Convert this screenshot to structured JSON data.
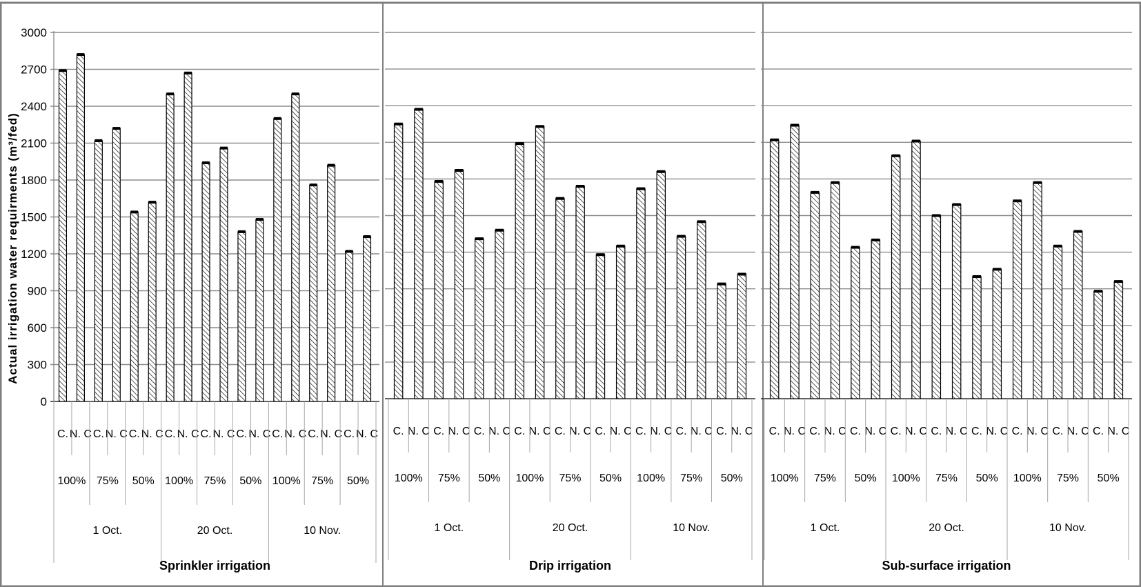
{
  "chart_data": {
    "type": "bar",
    "ylabel": "Actual irrigation water requirments (m³/fed)",
    "ylim": [
      0,
      3000
    ],
    "yticks": [
      0,
      300,
      600,
      900,
      1200,
      1500,
      1800,
      2100,
      2400,
      2700,
      3000
    ],
    "grid": true,
    "bar_fill": "diagonal-hatch",
    "level1_labels": [
      "C.",
      "N. C"
    ],
    "level2_labels": [
      "100%",
      "75%",
      "50%"
    ],
    "level3_labels": [
      "1 Oct.",
      "20 Oct.",
      "10 Nov."
    ],
    "panels": [
      {
        "title": "Sprinkler irrigation",
        "values": [
          2690,
          2820,
          2120,
          2220,
          1540,
          1620,
          2500,
          2670,
          1940,
          2060,
          1380,
          1480,
          2300,
          2500,
          1760,
          1920,
          1220,
          1340
        ]
      },
      {
        "title": "Drip irrigation",
        "values": [
          2250,
          2370,
          1780,
          1870,
          1310,
          1380,
          2090,
          2230,
          1640,
          1740,
          1180,
          1250,
          1720,
          1860,
          1330,
          1450,
          940,
          1020
        ]
      },
      {
        "title": "Sub-surface irrigation",
        "values": [
          2120,
          2240,
          1690,
          1770,
          1240,
          1300,
          1990,
          2110,
          1500,
          1590,
          1000,
          1060,
          1620,
          1770,
          1250,
          1370,
          880,
          960
        ]
      }
    ]
  }
}
